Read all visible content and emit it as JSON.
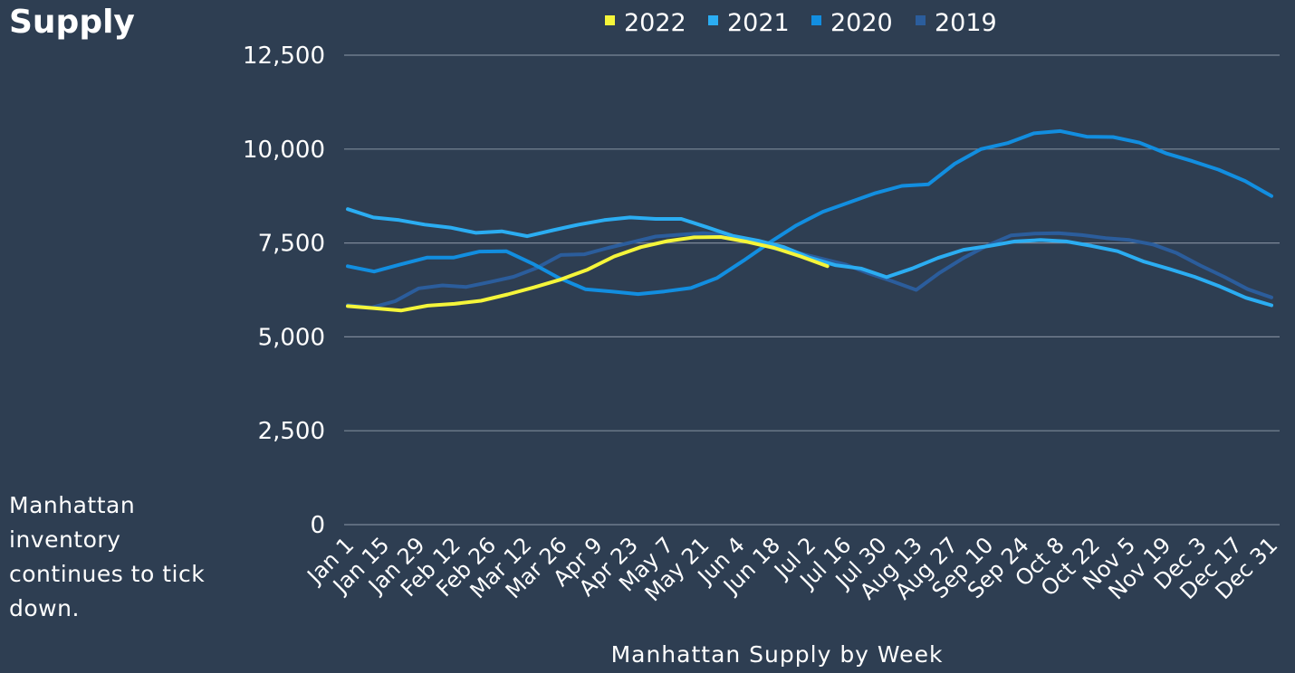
{
  "slide": {
    "title": "Supply",
    "caption": "Manhattan inventory continues to tick down."
  },
  "chart_data": {
    "type": "line",
    "title": "",
    "xlabel": "Manhattan Supply by Week",
    "ylabel": "",
    "ylim": [
      0,
      12500
    ],
    "yticks": [
      0,
      2500,
      5000,
      7500,
      10000,
      12500
    ],
    "ytick_labels": [
      "0",
      "2,500",
      "5,000",
      "7,500",
      "10,000",
      "12,500"
    ],
    "grid": true,
    "legend_position": "top",
    "x_tick_labels": [
      "Jan 1",
      "Jan 15",
      "Jan 29",
      "Feb 12",
      "Feb 26",
      "Mar 12",
      "Mar 26",
      "Apr 9",
      "Apr 23",
      "May 7",
      "May 21",
      "Jun 4",
      "Jun 18",
      "Jul 2",
      "Jul 16",
      "Jul 30",
      "Aug 13",
      "Aug 27",
      "Sep 10",
      "Sep 24",
      "Oct 8",
      "Oct 22",
      "Nov 5",
      "Nov 19",
      "Dec 3",
      "Dec 17",
      "Dec 31"
    ],
    "series": [
      {
        "name": "2022",
        "color": "#f5f53a",
        "values": [
          5820,
          5760,
          5700,
          5830,
          5880,
          5960,
          6130,
          6320,
          6530,
          6790,
          7140,
          7390,
          7550,
          7650,
          7660,
          7530,
          7370,
          7140,
          6880
        ]
      },
      {
        "name": "2021",
        "color": "#2badf2",
        "values": [
          8400,
          8180,
          8110,
          7990,
          7910,
          7770,
          7810,
          7680,
          7840,
          7990,
          8110,
          8180,
          8140,
          8140,
          7920,
          7690,
          7560,
          7390,
          7110,
          6910,
          6820,
          6590,
          6820,
          7100,
          7320,
          7420,
          7540,
          7580,
          7540,
          7420,
          7280,
          7010,
          6810,
          6600,
          6340,
          6040,
          5840
        ]
      },
      {
        "name": "2020",
        "color": "#128ee0",
        "values": [
          6880,
          6740,
          6930,
          7110,
          7110,
          7270,
          7280,
          6950,
          6570,
          6270,
          6210,
          6140,
          6210,
          6300,
          6570,
          7030,
          7520,
          7970,
          8330,
          8580,
          8830,
          9020,
          9060,
          9610,
          10000,
          10160,
          10420,
          10480,
          10330,
          10320,
          10170,
          9890,
          9680,
          9450,
          9150,
          8750
        ]
      },
      {
        "name": "2019",
        "color": "#2b5d9c",
        "values": [
          5850,
          5780,
          5950,
          6290,
          6370,
          6330,
          6460,
          6600,
          6840,
          7180,
          7200,
          7370,
          7520,
          7670,
          7720,
          7760,
          7720,
          7590,
          7350,
          7240,
          7080,
          6930,
          6690,
          6480,
          6250,
          6710,
          7100,
          7430,
          7700,
          7750,
          7760,
          7710,
          7630,
          7580,
          7460,
          7230,
          6900,
          6600,
          6270,
          6050
        ]
      }
    ]
  }
}
